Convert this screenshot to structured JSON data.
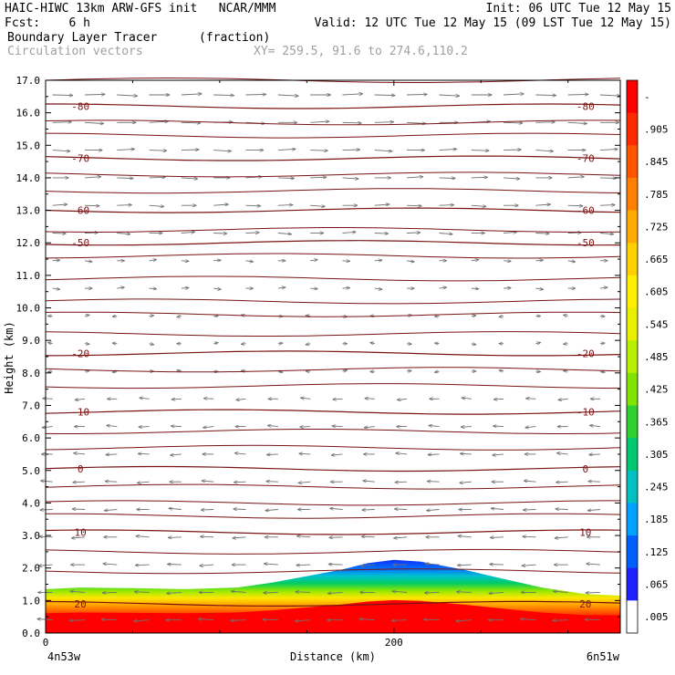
{
  "header": {
    "line1_left": "HAIC-HIWC 13km ARW-GFS init   NCAR/MMM",
    "line1_right": "Init: 06 UTC Tue 12 May 15",
    "line2_left": "Fcst:    6 h",
    "line2_right": "Valid: 12 UTC Tue 12 May 15 (09 LST Tue 12 May 15)",
    "line3_left": "Boundary Layer Tracer",
    "line3_units": "(fraction)",
    "line4_left": "Circulation vectors",
    "line4_xy": "XY= 259.5, 91.6 to 274.6,110.2"
  },
  "chart_data": {
    "type": "heatmap",
    "ylabel": "Height (km)",
    "xlabel": "Distance (km)",
    "ylim": [
      0.0,
      17.0
    ],
    "xlim": [
      0,
      330
    ],
    "yticks": [
      "0.0",
      "1.0",
      "2.0",
      "3.0",
      "4.0",
      "5.0",
      "6.0",
      "7.0",
      "8.0",
      "9.0",
      "10.0",
      "11.0",
      "12.0",
      "13.0",
      "14.0",
      "15.0",
      "16.0",
      "17.0"
    ],
    "xticks": [
      {
        "value": 0,
        "label": "0"
      },
      {
        "value": 200,
        "label": "200"
      }
    ],
    "x_end_left": "4n53w",
    "x_end_right": "6n51w",
    "tracer_top_km": [
      {
        "x": 0,
        "h": 1.35
      },
      {
        "x": 20,
        "h": 1.4
      },
      {
        "x": 50,
        "h": 1.38
      },
      {
        "x": 80,
        "h": 1.35
      },
      {
        "x": 110,
        "h": 1.4
      },
      {
        "x": 130,
        "h": 1.55
      },
      {
        "x": 150,
        "h": 1.75
      },
      {
        "x": 170,
        "h": 1.95
      },
      {
        "x": 185,
        "h": 2.15
      },
      {
        "x": 200,
        "h": 2.25
      },
      {
        "x": 215,
        "h": 2.2
      },
      {
        "x": 240,
        "h": 1.95
      },
      {
        "x": 260,
        "h": 1.7
      },
      {
        "x": 285,
        "h": 1.4
      },
      {
        "x": 310,
        "h": 1.2
      },
      {
        "x": 330,
        "h": 1.15
      }
    ],
    "isotherms": [
      {
        "value": -80,
        "label": "-80",
        "km": 16.2
      },
      {
        "value": -70,
        "label": "-70",
        "km": 14.6
      },
      {
        "value": -60,
        "label": "-60",
        "km": 13.0
      },
      {
        "value": -50,
        "label": "-50",
        "km": 12.0
      },
      {
        "value": -20,
        "label": "-20",
        "km": 8.6
      },
      {
        "value": -10,
        "label": "-10",
        "km": 6.8
      },
      {
        "value": 0,
        "label": "0",
        "km": 5.05
      },
      {
        "value": 10,
        "label": "10",
        "km": 3.1
      },
      {
        "value": 20,
        "label": "20",
        "km": 0.9
      }
    ],
    "isotherm_unlabeled_km": [
      17.0,
      15.7,
      15.3,
      14.1,
      13.6,
      12.4,
      11.6,
      10.9,
      10.2,
      9.8,
      9.2,
      8.1,
      7.6,
      6.2,
      5.7,
      4.5,
      4.0,
      3.6,
      2.5,
      1.9
    ],
    "colorbar": {
      "labels": [
        "-",
        ".905",
        ".845",
        ".785",
        ".725",
        ".665",
        ".605",
        ".545",
        ".485",
        ".425",
        ".365",
        ".305",
        ".245",
        ".185",
        ".125",
        ".065",
        ".005"
      ],
      "colors": [
        "#ff0000",
        "#ff2a00",
        "#ff5500",
        "#ff8000",
        "#ffaa00",
        "#ffd000",
        "#ffee00",
        "#e8f000",
        "#b8ee00",
        "#80e400",
        "#30d030",
        "#00c870",
        "#00c0c0",
        "#00a0ff",
        "#0060ff",
        "#2020ff",
        "#ffffff"
      ]
    }
  }
}
